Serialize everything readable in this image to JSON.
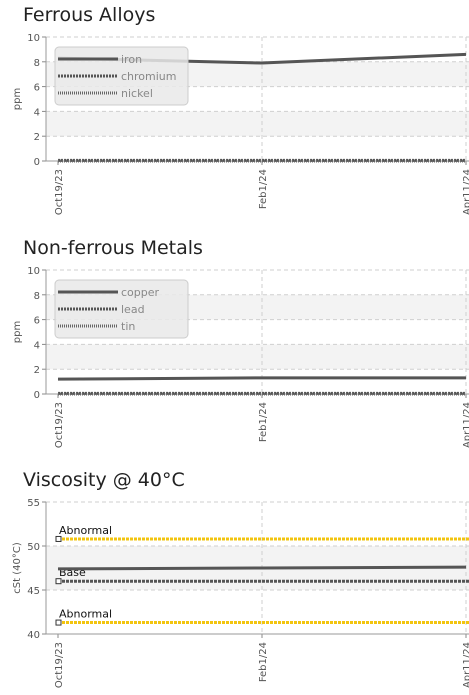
{
  "chart_data": [
    {
      "type": "line",
      "title": "Ferrous Alloys",
      "ylabel": "ppm",
      "ylim": [
        0,
        10
      ],
      "yticks": [
        "0",
        "2",
        "4",
        "6",
        "8",
        "10"
      ],
      "x": [
        "Oct19/23",
        "Feb1/24",
        "Apr11/24"
      ],
      "grid": true,
      "legend_position": "top-left",
      "series": [
        {
          "name": "iron",
          "values": [
            8.3,
            7.9,
            8.6
          ],
          "style": "solid",
          "color": "#555555"
        },
        {
          "name": "chromium",
          "values": [
            0.05,
            0.05,
            0.05
          ],
          "style": "dashed",
          "color": "#555555"
        },
        {
          "name": "nickel",
          "values": [
            0.0,
            0.0,
            0.0
          ],
          "style": "dotted",
          "color": "#666666"
        }
      ]
    },
    {
      "type": "line",
      "title": "Non-ferrous Metals",
      "ylabel": "ppm",
      "ylim": [
        0,
        10
      ],
      "yticks": [
        "0",
        "2",
        "4",
        "6",
        "8",
        "10"
      ],
      "x": [
        "Oct19/23",
        "Feb1/24",
        "Apr11/24"
      ],
      "grid": true,
      "legend_position": "top-left",
      "series": [
        {
          "name": "copper",
          "values": [
            1.2,
            1.3,
            1.3
          ],
          "style": "solid",
          "color": "#555555"
        },
        {
          "name": "lead",
          "values": [
            0.05,
            0.05,
            0.05
          ],
          "style": "dashed",
          "color": "#555555"
        },
        {
          "name": "tin",
          "values": [
            0.0,
            0.0,
            0.0
          ],
          "style": "dotted",
          "color": "#666666"
        }
      ]
    },
    {
      "type": "line",
      "title": "Viscosity @ 40°C",
      "ylabel": "cSt (40°C)",
      "ylim": [
        40,
        55
      ],
      "yticks": [
        "40",
        "45",
        "50",
        "55"
      ],
      "x": [
        "Oct19/23",
        "Feb1/24",
        "Apr11/24"
      ],
      "grid": true,
      "series": [
        {
          "name": "",
          "values": [
            47.4,
            47.5,
            47.6
          ],
          "style": "solid",
          "color": "#555555"
        }
      ],
      "reference_lines": [
        {
          "label": "Abnormal",
          "value": 50.8,
          "color": "#f2c40f"
        },
        {
          "label": "Base",
          "value": 46.0,
          "color": "#555555"
        },
        {
          "label": "Abnormal",
          "value": 41.3,
          "color": "#f2c40f"
        }
      ]
    }
  ]
}
